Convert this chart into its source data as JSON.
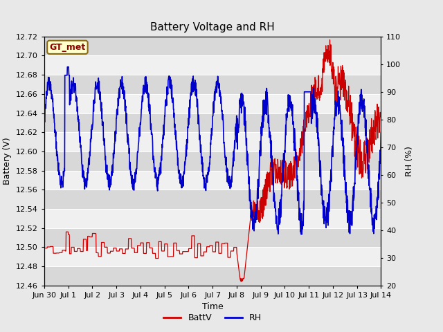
{
  "title": "Battery Voltage and RH",
  "xlabel": "Time",
  "ylabel_left": "Battery (V)",
  "ylabel_right": "RH (%)",
  "ylim_left": [
    12.46,
    12.72
  ],
  "ylim_right": [
    20,
    110
  ],
  "yticks_left": [
    12.46,
    12.48,
    12.5,
    12.52,
    12.54,
    12.56,
    12.58,
    12.6,
    12.62,
    12.64,
    12.66,
    12.68,
    12.7,
    12.72
  ],
  "yticks_right": [
    20,
    30,
    40,
    50,
    60,
    70,
    80,
    90,
    100,
    110
  ],
  "xtick_labels": [
    "Jun 30",
    "Jul 1",
    "Jul 2",
    "Jul 3",
    "Jul 4",
    "Jul 5",
    "Jul 6",
    "Jul 7",
    "Jul 8",
    "Jul 9",
    "Jul 10",
    "Jul 11",
    "Jul 12",
    "Jul 13",
    "Jul 14"
  ],
  "color_battv": "#cc0000",
  "color_rh": "#0000cc",
  "legend_label_battv": "BattV",
  "legend_label_rh": "RH",
  "station_label": "GT_met",
  "station_label_color": "#8b0000",
  "station_box_facecolor": "#ffffcc",
  "station_box_edgecolor": "#8b6914",
  "background_color": "#e8e8e8",
  "plot_bg_color": "#f0f0f0",
  "band_color_dark": "#d8d8d8",
  "title_fontsize": 11,
  "axis_label_fontsize": 9,
  "tick_fontsize": 8,
  "legend_fontsize": 9
}
